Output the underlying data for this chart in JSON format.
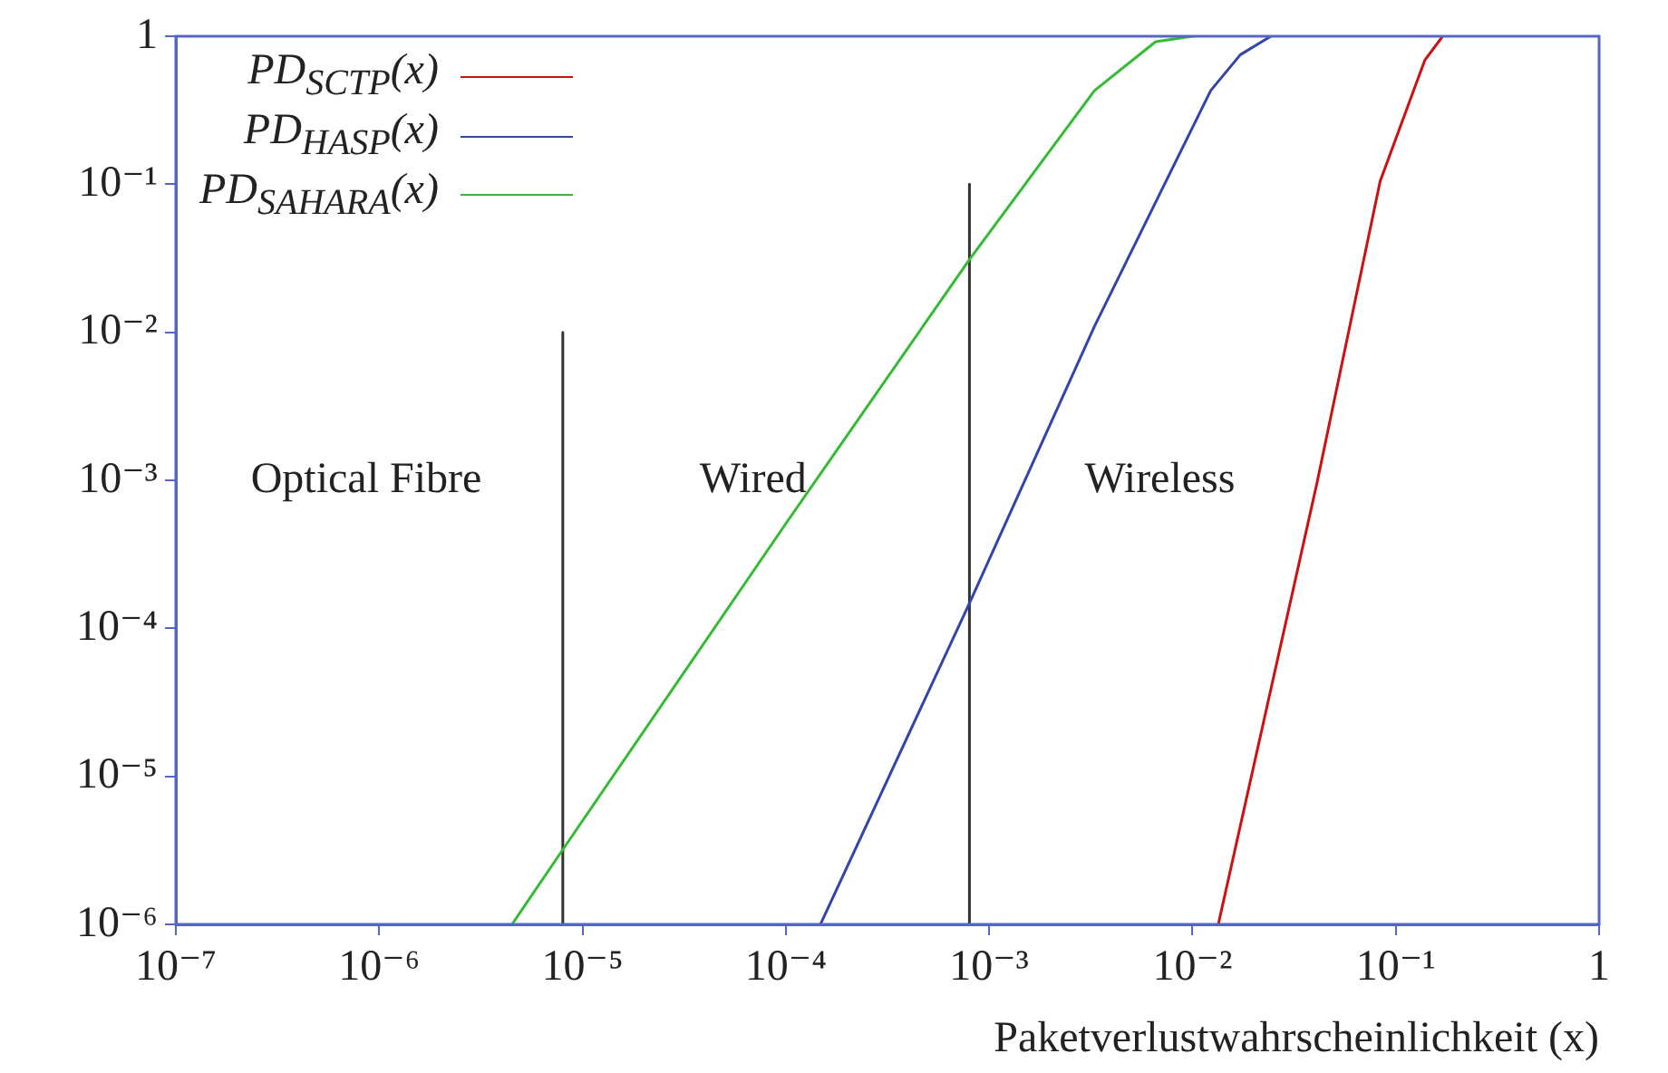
{
  "chart_data": {
    "type": "line",
    "xlabel": "Paketverlustwahrscheinlichkeit (x)",
    "log": "xy",
    "grid": false,
    "legend": "top left",
    "line_style": "solid",
    "xlim": [
      1e-07,
      1
    ],
    "ylim": [
      1e-06,
      1
    ],
    "xticks": [
      {
        "value": 1e-07,
        "label": "10⁻⁷"
      },
      {
        "value": 1e-06,
        "label": "10⁻⁶"
      },
      {
        "value": 1e-05,
        "label": "10⁻⁵"
      },
      {
        "value": 0.0001,
        "label": "10⁻⁴"
      },
      {
        "value": 0.001,
        "label": "10⁻³"
      },
      {
        "value": 0.01,
        "label": "10⁻²"
      },
      {
        "value": 0.1,
        "label": "10⁻¹"
      },
      1
    ],
    "yticks": [
      {
        "value": 1e-06,
        "label": "10⁻⁶"
      },
      {
        "value": 1e-05,
        "label": "10⁻⁵"
      },
      {
        "value": 0.0001,
        "label": "10⁻⁴"
      },
      {
        "value": 0.001,
        "label": "10⁻³"
      },
      {
        "value": 0.01,
        "label": "10⁻²"
      },
      {
        "value": 0.1,
        "label": "10⁻¹"
      },
      1
    ],
    "series": [
      {
        "name": "PD$_{SCTP}$(x)",
        "color": "#cc1111",
        "x": [
          0.0134,
          0.0409,
          0.0838,
          0.139,
          0.17
        ],
        "values": [
          1e-06,
          0.00095,
          0.105,
          0.69,
          1
        ]
      },
      {
        "name": "PD$_{HASP}$(x)",
        "color": "#3344aa",
        "x": [
          0.000148,
          0.0008,
          0.0033,
          0.0123,
          0.0172,
          0.0243
        ],
        "values": [
          1e-06,
          0.000148,
          0.011,
          0.43,
          0.75,
          1
        ]
      },
      {
        "name": "PD$_{SAHARA}$(x)",
        "color": "#33bb33",
        "x": [
          4.5e-06,
          8e-06,
          0.0001,
          0.0008,
          0.002,
          0.0033,
          0.0066,
          0.01
        ],
        "values": [
          1e-06,
          3.2e-06,
          0.00051,
          0.031,
          0.17,
          0.43,
          0.92,
          1
        ]
      },
      {
        "color": "#333333",
        "x": [
          8e-06,
          8e-06
        ],
        "values": [
          1e-06,
          0.01
        ]
      },
      {
        "color": "#333333",
        "x": [
          0.0008,
          0.0008
        ],
        "values": [
          1e-06,
          0.1
        ]
      }
    ],
    "annotations": [
      "Optical Fibre",
      "Wired",
      "Wireless"
    ]
  }
}
